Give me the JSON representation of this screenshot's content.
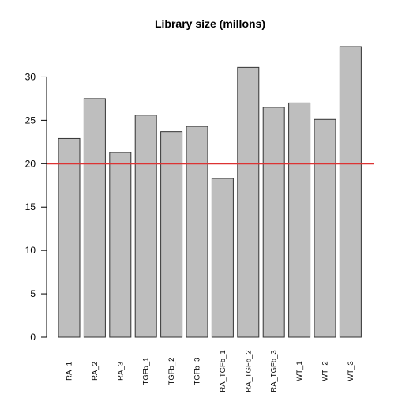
{
  "chart_data": {
    "type": "bar",
    "title": "Library size (millons)",
    "xlabel": "",
    "ylabel": "",
    "categories": [
      "RA_1",
      "RA_2",
      "RA_3",
      "TGFb_1",
      "TGFb_2",
      "TGFb_3",
      "RA_TGFb_1",
      "RA_TGFb_2",
      "RA_TGFb_3",
      "WT_1",
      "WT_2",
      "WT_3"
    ],
    "values": [
      22.9,
      27.5,
      21.3,
      25.6,
      23.7,
      24.3,
      18.3,
      31.1,
      26.5,
      27.0,
      25.1,
      33.5
    ],
    "ylim": [
      0,
      33.5
    ],
    "yticks": [
      0,
      5,
      10,
      15,
      20,
      25,
      30
    ],
    "reference_line": {
      "y": 20,
      "color": "#dd3333"
    },
    "bar_fill": "#bebebe",
    "bar_stroke": "#333333",
    "grid": false
  }
}
